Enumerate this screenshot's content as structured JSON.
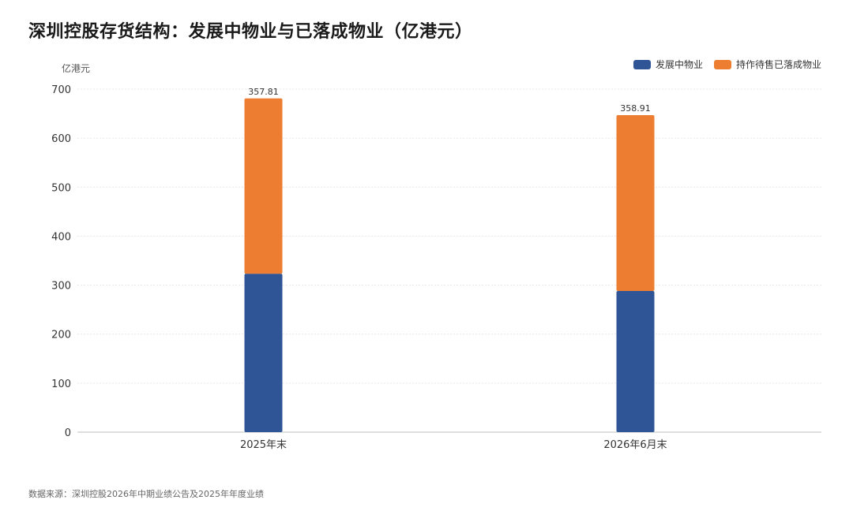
{
  "title": "深圳控股存货结构：发展中物业与已落成物业（亿港元）",
  "unit_label": "亿港元",
  "source_note": "数据来源：深圳控股2026年中期业绩公告及2025年年度业绩",
  "colors": {
    "developing": "#2f5597",
    "completed": "#ed7d31",
    "grid": "#e6e6e6",
    "axis": "#bfbfbf"
  },
  "chart_data": {
    "type": "bar",
    "stacked": true,
    "categories": [
      "2025年末",
      "2026年6月末"
    ],
    "series": [
      {
        "name": "发展中物业",
        "values": [
          323.25,
          287.95
        ],
        "labels": [
          "323.25",
          "287.95"
        ]
      },
      {
        "name": "持作待售已落成物业",
        "values": [
          357.81,
          358.91
        ],
        "labels": [
          "357.81",
          "358.91"
        ]
      }
    ],
    "ylim": [
      0,
      700
    ],
    "yticks": [
      "0",
      "100",
      "200",
      "300",
      "400",
      "500",
      "600",
      "700"
    ],
    "grid": true,
    "legend_position": "top-right"
  }
}
